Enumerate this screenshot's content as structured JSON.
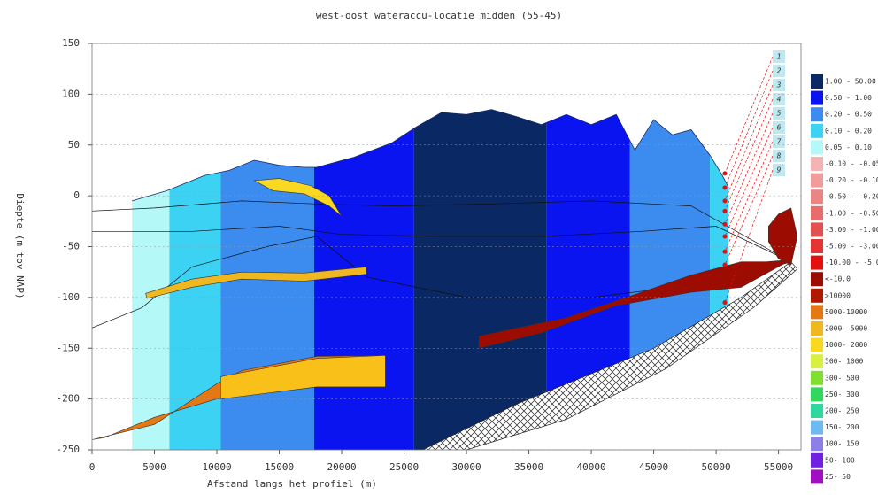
{
  "chart_data": {
    "type": "section",
    "title": "west-oost wateraccu-locatie midden (55-45)",
    "x_label": "Afstand langs het profiel (m)",
    "y_label": "Diepte (m tov NAP)",
    "xlim": [
      0,
      56800
    ],
    "ylim": [
      -250,
      150
    ],
    "xticks": [
      0,
      5000,
      10000,
      15000,
      20000,
      25000,
      30000,
      35000,
      40000,
      45000,
      50000,
      55000
    ],
    "yticks": [
      -250,
      -200,
      -150,
      -100,
      -50,
      0,
      50,
      100,
      150
    ],
    "grid": true,
    "surface": {
      "x": [
        3200,
        6000,
        9000,
        11000,
        13000,
        15000,
        17000,
        18000,
        21000,
        24000,
        26000,
        28000,
        30000,
        32000,
        34000,
        36000,
        38000,
        40000,
        42000,
        43500,
        45000,
        46500,
        48000,
        49500,
        50500,
        51000
      ],
      "y": [
        -5,
        5,
        20,
        25,
        35,
        30,
        28,
        28,
        38,
        52,
        68,
        82,
        80,
        85,
        78,
        70,
        80,
        70,
        80,
        45,
        75,
        60,
        65,
        40,
        20,
        8
      ]
    },
    "base": {
      "x": [
        0,
        26500,
        34000,
        45000,
        52000,
        56000
      ],
      "y": [
        -250,
        -250,
        -205,
        -150,
        -100,
        -65
      ]
    },
    "bands": [
      {
        "from": 3200,
        "to": 6200,
        "color": "#b4f8f8"
      },
      {
        "from": 6200,
        "to": 10300,
        "color": "#3cd2f4"
      },
      {
        "from": 10300,
        "to": 17800,
        "color": "#3c8cf0"
      },
      {
        "from": 17800,
        "to": 25800,
        "color": "#0a14f0"
      },
      {
        "from": 25800,
        "to": 36400,
        "color": "#0a2864"
      },
      {
        "from": 36400,
        "to": 43100,
        "color": "#0a14f0"
      },
      {
        "from": 43100,
        "to": 49500,
        "color": "#3c8cf0"
      },
      {
        "from": 49500,
        "to": 51200,
        "color": "#3cd2f4"
      }
    ],
    "bodies": [
      {
        "color": "#e47814",
        "x": [
          0,
          5000,
          10000,
          12000,
          18000,
          23500,
          23500,
          18000,
          10000,
          5000,
          1000,
          0
        ],
        "y": [
          -240,
          -225,
          -185,
          -172,
          -158,
          -157,
          -188,
          -188,
          -200,
          -218,
          -238,
          -240
        ]
      },
      {
        "color": "#f8c018",
        "x": [
          10300,
          18000,
          23500,
          23500,
          18000,
          10300
        ],
        "y": [
          -178,
          -160,
          -157,
          -188,
          -188,
          -200
        ]
      },
      {
        "color": "#f0b820",
        "x": [
          4300,
          8000,
          12000,
          17000,
          22000,
          22000,
          17000,
          12000,
          8000,
          4400
        ],
        "y": [
          -96,
          -82,
          -75,
          -76,
          -70,
          -77,
          -84,
          -82,
          -90,
          -101
        ]
      },
      {
        "color": "#f8d820",
        "x": [
          13000,
          15000,
          17500,
          19000,
          20000,
          19000,
          17000,
          14500,
          13000
        ],
        "y": [
          15,
          17,
          10,
          0,
          -20,
          -10,
          2,
          5,
          15
        ]
      },
      {
        "color": "#9c0c00",
        "x": [
          31000,
          38000,
          44000,
          48000,
          52000,
          54000,
          56000,
          52000,
          48000,
          42000,
          36000,
          31000
        ],
        "y": [
          -138,
          -120,
          -95,
          -78,
          -65,
          -65,
          -63,
          -90,
          -95,
          -108,
          -135,
          -150
        ]
      },
      {
        "color": "#9c0c00",
        "x": [
          54200,
          55000,
          56000,
          56500,
          56000,
          55000,
          54200
        ],
        "y": [
          -30,
          -18,
          -12,
          -40,
          -68,
          -62,
          -45
        ]
      }
    ],
    "hatch": {
      "x": [
        26500,
        34000,
        45000,
        52000,
        56000,
        56500,
        53000,
        46000,
        38000,
        30000,
        27500
      ],
      "y": [
        -250,
        -205,
        -150,
        -100,
        -65,
        -72,
        -110,
        -170,
        -220,
        -250,
        -260
      ]
    },
    "lines": [
      {
        "x": [
          0,
          8000,
          15000,
          20000,
          28000,
          36000,
          44000,
          50000,
          56000
        ],
        "y": [
          -35,
          -35,
          -30,
          -38,
          -40,
          -40,
          -35,
          -30,
          -65
        ]
      },
      {
        "x": [
          0,
          5000,
          12000,
          18000,
          24000,
          32000,
          40000,
          48000,
          56000
        ],
        "y": [
          -15,
          -12,
          -5,
          -8,
          -10,
          -8,
          -5,
          -10,
          -65
        ]
      },
      {
        "x": [
          0,
          4000,
          8000,
          14000,
          18000,
          22000,
          30000,
          40000,
          50000,
          56000
        ],
        "y": [
          -130,
          -110,
          -70,
          -50,
          -40,
          -80,
          -100,
          -100,
          -85,
          -65
        ]
      }
    ],
    "points": {
      "x": [
        50700,
        50700,
        50700,
        50700,
        50700,
        50700,
        50700,
        50700,
        50700
      ],
      "y": [
        22,
        8,
        -5,
        -15,
        -28,
        -40,
        -55,
        -68,
        -105
      ],
      "color": "#e01010"
    },
    "markers": [
      "1",
      "2",
      "3",
      "4",
      "5",
      "6",
      "7",
      "8",
      "9"
    ],
    "legend": [
      {
        "label": "1.00 - 50.00",
        "color": "#0a2864"
      },
      {
        "label": "0.50 - 1.00",
        "color": "#0a14f0"
      },
      {
        "label": "0.20 - 0.50",
        "color": "#3c8cf0"
      },
      {
        "label": "0.10 - 0.20",
        "color": "#3cd2f4"
      },
      {
        "label": "0.05 - 0.10",
        "color": "#b4f8f8"
      },
      {
        "label": "-0.10 - -0.05",
        "color": "#f4b4b4"
      },
      {
        "label": "-0.20 - -0.10",
        "color": "#f09c9c"
      },
      {
        "label": "-0.50 - -0.20",
        "color": "#ec8484"
      },
      {
        "label": "-1.00 - -0.50",
        "color": "#e86c6c"
      },
      {
        "label": "-3.00 - -1.00",
        "color": "#e45050"
      },
      {
        "label": "-5.00 - -3.00",
        "color": "#e43434"
      },
      {
        "label": "-10.00 - -5.00",
        "color": "#e41010"
      },
      {
        "label": "<-10.0",
        "color": "#9c0c00"
      },
      {
        "label": ">10000",
        "color": "#b01800"
      },
      {
        "label": "5000-10000",
        "color": "#e47814"
      },
      {
        "label": "2000- 5000",
        "color": "#f0b820"
      },
      {
        "label": "1000- 2000",
        "color": "#f8d820"
      },
      {
        "label": "500- 1000",
        "color": "#d8f040"
      },
      {
        "label": "300- 500",
        "color": "#80e030"
      },
      {
        "label": "250- 300",
        "color": "#30d860"
      },
      {
        "label": "200- 250",
        "color": "#30d8a0"
      },
      {
        "label": "150- 200",
        "color": "#70b8f0"
      },
      {
        "label": "100- 150",
        "color": "#8c80e8"
      },
      {
        "label": "50- 100",
        "color": "#7020e0"
      },
      {
        "label": "25- 50",
        "color": "#a010c0"
      }
    ]
  }
}
